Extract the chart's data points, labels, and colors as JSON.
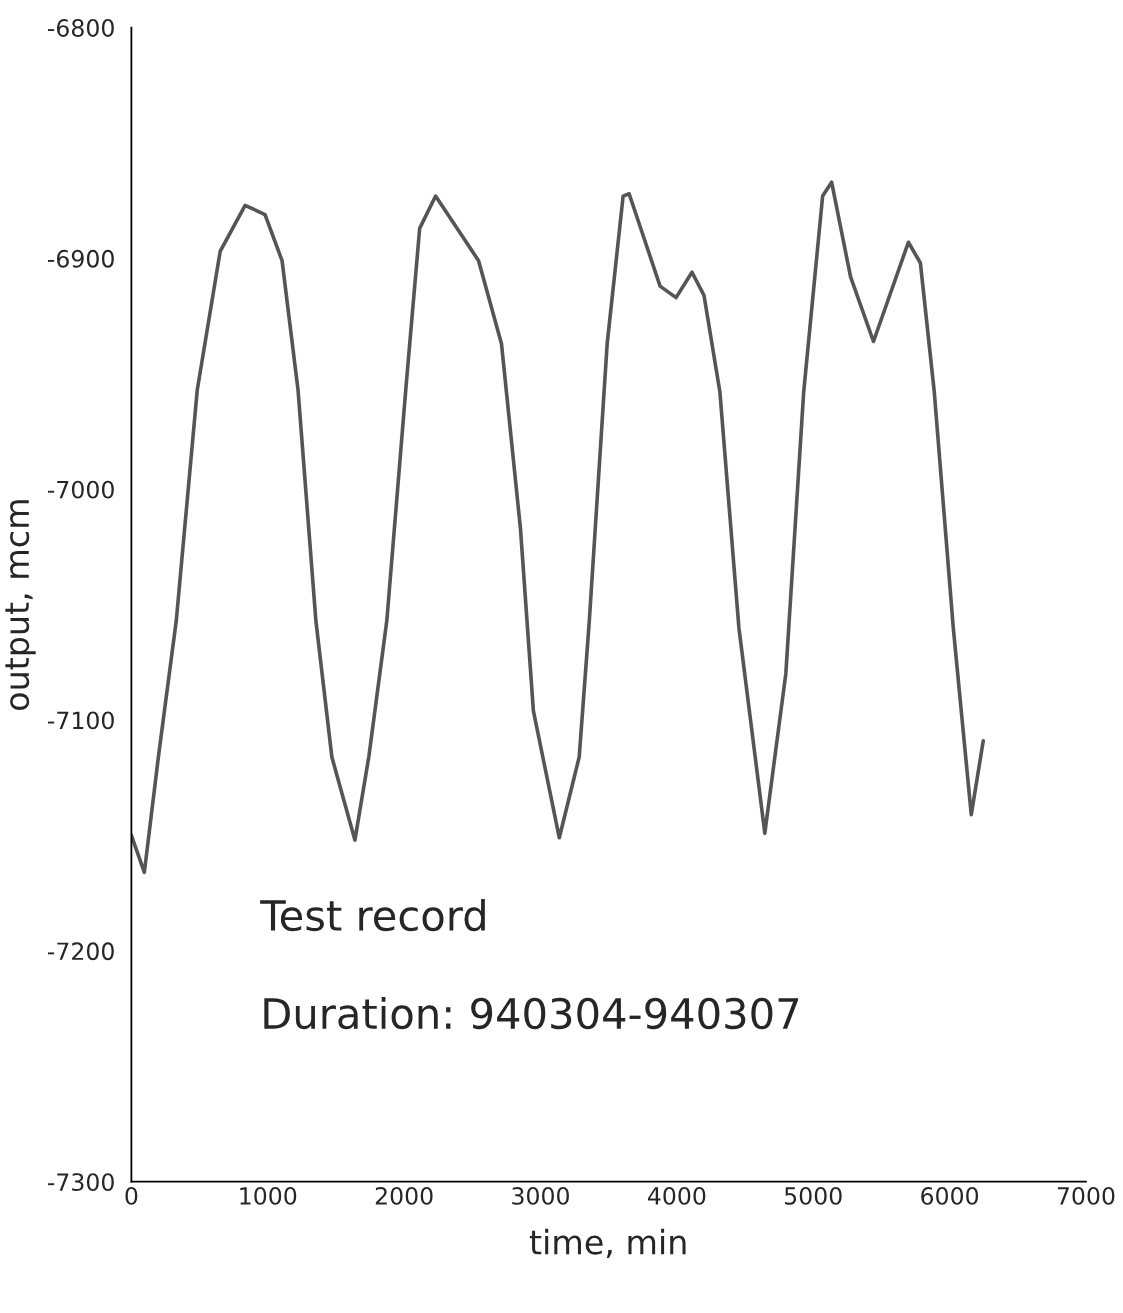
{
  "chart_data": {
    "type": "line",
    "xlabel": "time, min",
    "ylabel": "output, mcm",
    "annotations": [
      "Test record",
      "Duration: 940304-940307"
    ],
    "series": [
      {
        "color": "#555555",
        "x": [
          0,
          95,
          198,
          329,
          483,
          651,
          834,
          980,
          1105,
          1222,
          1353,
          1470,
          1639,
          1741,
          1873,
          2012,
          2114,
          2231,
          2546,
          2714,
          2853,
          2948,
          3138,
          3284,
          3358,
          3489,
          3606,
          3650,
          3877,
          3994,
          4111,
          4199,
          4316,
          4455,
          4645,
          4799,
          4930,
          5069,
          5135,
          5274,
          5442,
          5698,
          5786,
          5888,
          6027,
          6159,
          6247
        ],
        "values": [
          -7150,
          -7166,
          -7116,
          -7057,
          -6957,
          -6897,
          -6877,
          -6881,
          -6901,
          -6957,
          -7057,
          -7116,
          -7152,
          -7116,
          -7057,
          -6957,
          -6887,
          -6873,
          -6901,
          -6937,
          -7017,
          -7096,
          -7151,
          -7116,
          -7057,
          -6937,
          -6873,
          -6872,
          -6912,
          -6917,
          -6906,
          -6916,
          -6958,
          -7060,
          -7149,
          -7080,
          -6958,
          -6873,
          -6867,
          -6908,
          -6936,
          -6893,
          -6902,
          -6958,
          -7060,
          -7141,
          -7109
        ]
      }
    ],
    "xlim": [
      0,
      7000
    ],
    "xticks": [
      0,
      1000,
      2000,
      3000,
      4000,
      5000,
      6000,
      7000
    ],
    "ylim": [
      -7300,
      -6800
    ],
    "yticks": [
      -7300,
      -7200,
      -7100,
      -7000,
      -6900,
      -6800
    ],
    "grid": false,
    "legend": false,
    "marker": "none",
    "line_style": "solid"
  }
}
